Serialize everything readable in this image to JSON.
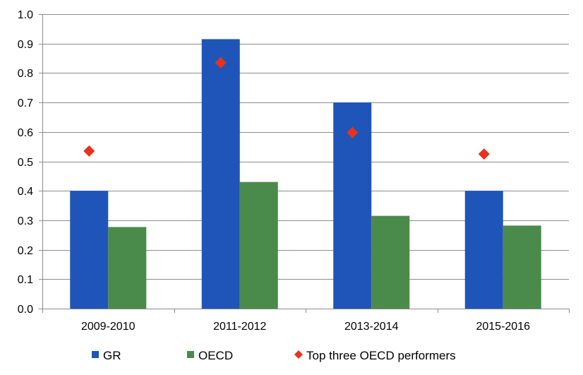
{
  "chart_data": {
    "type": "bar",
    "categories": [
      "2009-2010",
      "2011-2012",
      "2013-2014",
      "2015-2016"
    ],
    "series": [
      {
        "name": "GR",
        "kind": "bar",
        "color": "#1f55b8",
        "values": [
          0.4,
          0.915,
          0.7,
          0.4
        ]
      },
      {
        "name": "OECD",
        "kind": "bar",
        "color": "#4a8a4a",
        "values": [
          0.277,
          0.43,
          0.315,
          0.282
        ]
      },
      {
        "name": "Top three OECD performers",
        "kind": "marker",
        "marker": "diamond",
        "color": "#e8321e",
        "values": [
          0.535,
          0.835,
          0.598,
          0.525
        ]
      }
    ],
    "title": "",
    "xlabel": "",
    "ylabel": "",
    "ylim": [
      0,
      1.0
    ],
    "yticks": [
      "0.0",
      "0.1",
      "0.2",
      "0.3",
      "0.4",
      "0.5",
      "0.6",
      "0.7",
      "0.8",
      "0.9",
      "1.0"
    ],
    "grid": true,
    "legend_position": "bottom"
  }
}
